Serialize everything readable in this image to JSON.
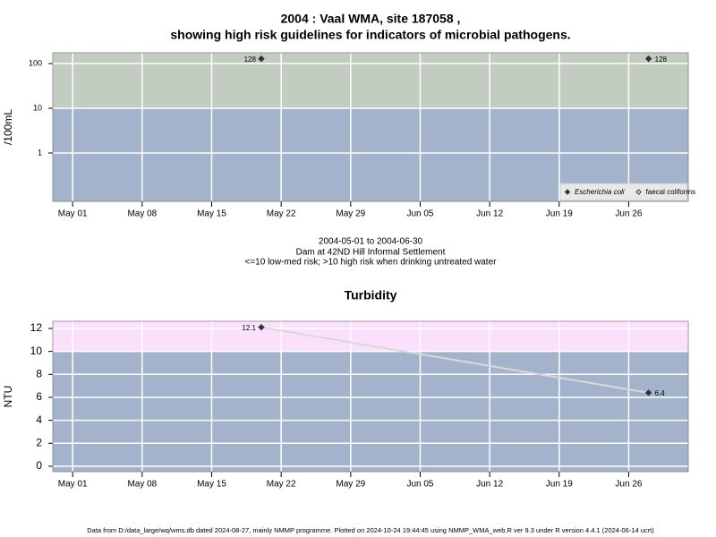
{
  "title": "2004 : Vaal WMA, site 187058 ,",
  "subtitle": "showing high risk guidelines for indicators of microbial pathogens.",
  "caption": [
    "2004-05-01 to 2004-06-30",
    "Dam at 42ND Hill Informal Settlement",
    "<=10 low-med risk; >10 high risk when drinking untreated water"
  ],
  "footer": "Data from D:/data_large/wq/wms.db dated 2024-08-27, mainly NMMP programme. Plotted on 2024-10-24 19:44:45 using NMMP_WMA_web.R ver 9.3 under R version 4.4.1 (2024-06-14 ucrt)",
  "chart_data": [
    {
      "type": "scatter",
      "ylabel": "/100mL",
      "log_y": true,
      "grid": true,
      "x": [
        "May 20",
        "Jun 28"
      ],
      "xlim": [
        "Apr 29",
        "Jul 02"
      ],
      "xticks": [
        "May 01",
        "May 08",
        "May 15",
        "May 22",
        "May 29",
        "Jun 05",
        "Jun 12",
        "Jun 19",
        "Jun 26"
      ],
      "ylim": [
        0.083,
        174
      ],
      "yticks": [
        1,
        10,
        100
      ],
      "threshold": 10,
      "low_color": "#a3b3cb",
      "high_color": "#c2ccc0",
      "legend": "bottom-right",
      "series": [
        {
          "name": "Escherichia coli",
          "color": "#333333",
          "marker": "filled",
          "values": [
            128,
            128
          ]
        },
        {
          "name": "faecal coliforms",
          "color": "#333333",
          "marker": "open",
          "values": [
            null,
            null
          ]
        }
      ]
    },
    {
      "type": "line",
      "title": "Turbidity",
      "ylabel": "NTU",
      "grid": true,
      "x": [
        "May 20",
        "Jun 28"
      ],
      "xlim": [
        "Apr 29",
        "Jul 02"
      ],
      "xticks": [
        "May 01",
        "May 08",
        "May 15",
        "May 22",
        "May 29",
        "Jun 05",
        "Jun 12",
        "Jun 19",
        "Jun 26"
      ],
      "ylim": [
        -0.47,
        12.62
      ],
      "yticks": [
        0,
        2,
        4,
        6,
        8,
        10,
        12
      ],
      "threshold": 10,
      "low_color": "#a3b3cb",
      "high_color": "#fbe0fb",
      "series": [
        {
          "color": "#333333",
          "line_color": "#d8d8d8",
          "values": [
            12.1,
            6.4
          ]
        }
      ]
    }
  ]
}
